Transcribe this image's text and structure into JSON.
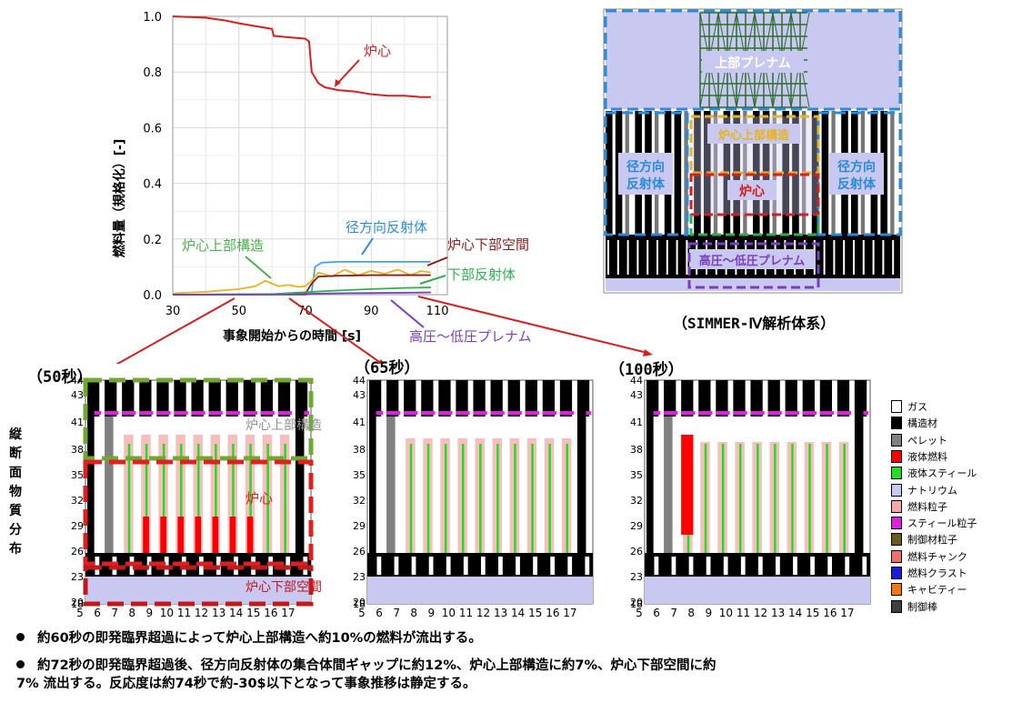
{
  "chart_data": [
    {
      "type": "line",
      "xlabel": "事象開始からの時間 [s]",
      "ylabel": "燃料量（規格化）[-]",
      "xlim": [
        30,
        113
      ],
      "ylim": [
        0,
        1.0
      ],
      "xticks": [
        "30",
        "50",
        "70",
        "90",
        "110"
      ],
      "yticks": [
        "0.0",
        "0.2",
        "0.4",
        "0.6",
        "0.8",
        "1.0"
      ],
      "grid": true,
      "series": [
        {
          "name": "炉心",
          "color": "#d42020",
          "x": [
            30,
            40,
            46,
            50,
            55,
            60,
            60.5,
            65,
            70,
            71.2,
            72,
            74,
            76,
            80,
            85,
            90,
            95,
            100,
            105,
            108
          ],
          "y": [
            1.0,
            0.995,
            0.985,
            0.975,
            0.965,
            0.955,
            0.93,
            0.925,
            0.92,
            0.91,
            0.8,
            0.76,
            0.745,
            0.735,
            0.73,
            0.72,
            0.715,
            0.715,
            0.71,
            0.71
          ]
        },
        {
          "name": "径方向反射体",
          "color": "#41a6e0",
          "x": [
            30,
            60,
            70,
            72,
            73,
            75,
            80,
            90,
            100,
            108
          ],
          "y": [
            0,
            0.001,
            0.002,
            0.01,
            0.1,
            0.115,
            0.118,
            0.118,
            0.118,
            0.118
          ]
        },
        {
          "name": "炉心上部構造",
          "color": "#e6b422",
          "x": [
            30,
            40,
            50,
            55,
            58,
            60,
            62,
            65,
            68,
            70,
            72,
            74,
            78,
            82,
            86,
            90,
            94,
            98,
            102,
            105,
            108
          ],
          "y": [
            0.005,
            0.01,
            0.02,
            0.03,
            0.05,
            0.04,
            0.03,
            0.035,
            0.028,
            0.03,
            0.05,
            0.08,
            0.065,
            0.09,
            0.07,
            0.085,
            0.075,
            0.09,
            0.07,
            0.085,
            0.08
          ]
        },
        {
          "name": "炉心下部空間",
          "color": "#8b1a1a",
          "x": [
            30,
            70,
            72,
            74,
            80,
            90,
            100,
            108
          ],
          "y": [
            0,
            0.002,
            0.04,
            0.065,
            0.068,
            0.07,
            0.07,
            0.07
          ]
        },
        {
          "name": "下部反射体",
          "color": "#2fae4f",
          "x": [
            30,
            60,
            72,
            80,
            90,
            100,
            108
          ],
          "y": [
            0,
            0.002,
            0.01,
            0.015,
            0.02,
            0.024,
            0.026
          ]
        },
        {
          "name": "高圧～低圧プレナム",
          "color": "#7a3fbf",
          "x": [
            30,
            70,
            72,
            80,
            90,
            100,
            108
          ],
          "y": [
            0,
            0.0,
            0.003,
            0.005,
            0.006,
            0.007,
            0.008
          ]
        }
      ]
    }
  ],
  "schematic": {
    "caption": "（SIMMER-Ⅳ解析体系）",
    "labels": {
      "upper_plenum": "上部プレナム",
      "core_upper": "炉心上部構造",
      "radial_left": "径方向\n反射体",
      "radial_right": "径方向\n反射体",
      "core": "炉心",
      "plenum": "高圧～低圧プレナム"
    }
  },
  "snapshots": [
    {
      "title": "（50秒）",
      "labels": [
        "炉心上部構造",
        "炉心",
        "炉心下部空間"
      ]
    },
    {
      "title": "（65秒）",
      "labels": []
    },
    {
      "title": "（100秒）",
      "labels": []
    }
  ],
  "snapshot_axes": {
    "y_ticks": [
      "44",
      "43",
      "41",
      "38",
      "35",
      "32",
      "29",
      "26",
      "23",
      "20",
      "18"
    ],
    "x_ticks": [
      "5",
      "6",
      "7",
      "8",
      "9",
      "10",
      "11",
      "12",
      "13",
      "14",
      "15",
      "16",
      "17"
    ]
  },
  "side_label": "縦断面物質分布",
  "material_legend": [
    {
      "label": "ガス",
      "color": "#ffffff"
    },
    {
      "label": "構造材",
      "color": "#000000"
    },
    {
      "label": "ペレット",
      "color": "#808080"
    },
    {
      "label": "液体燃料",
      "color": "#ff0000"
    },
    {
      "label": "液体スティール",
      "color": "#22dd22"
    },
    {
      "label": "ナトリウム",
      "color": "#c8c8f0"
    },
    {
      "label": "燃料粒子",
      "color": "#f4a8a8"
    },
    {
      "label": "スティール粒子",
      "color": "#e020e0"
    },
    {
      "label": "制御材粒子",
      "color": "#6b5a20"
    },
    {
      "label": "燃料チャンク",
      "color": "#f07070"
    },
    {
      "label": "燃料クラスト",
      "color": "#1a1ae0"
    },
    {
      "label": "キャビティー",
      "color": "#f07a10"
    },
    {
      "label": "制御棒",
      "color": "#404040"
    }
  ],
  "notes": [
    "約60秒の即発臨界超過によって炉心上部構造へ約10%の燃料が流出する。",
    "約72秒の即発臨界超過後、径方向反射体の集合体間ギャップに約12%、炉心上部構造に約7%、炉心下部空間に約\n7% 流出する。反応度は約74秒で約-30$以下となって事象推移は静定する。"
  ],
  "colors": {
    "accent_red": "#d42020",
    "blue": "#2a8bd8",
    "green_dash": "#70a830",
    "purple": "#7a3fbf",
    "gold": "#e6b422"
  }
}
